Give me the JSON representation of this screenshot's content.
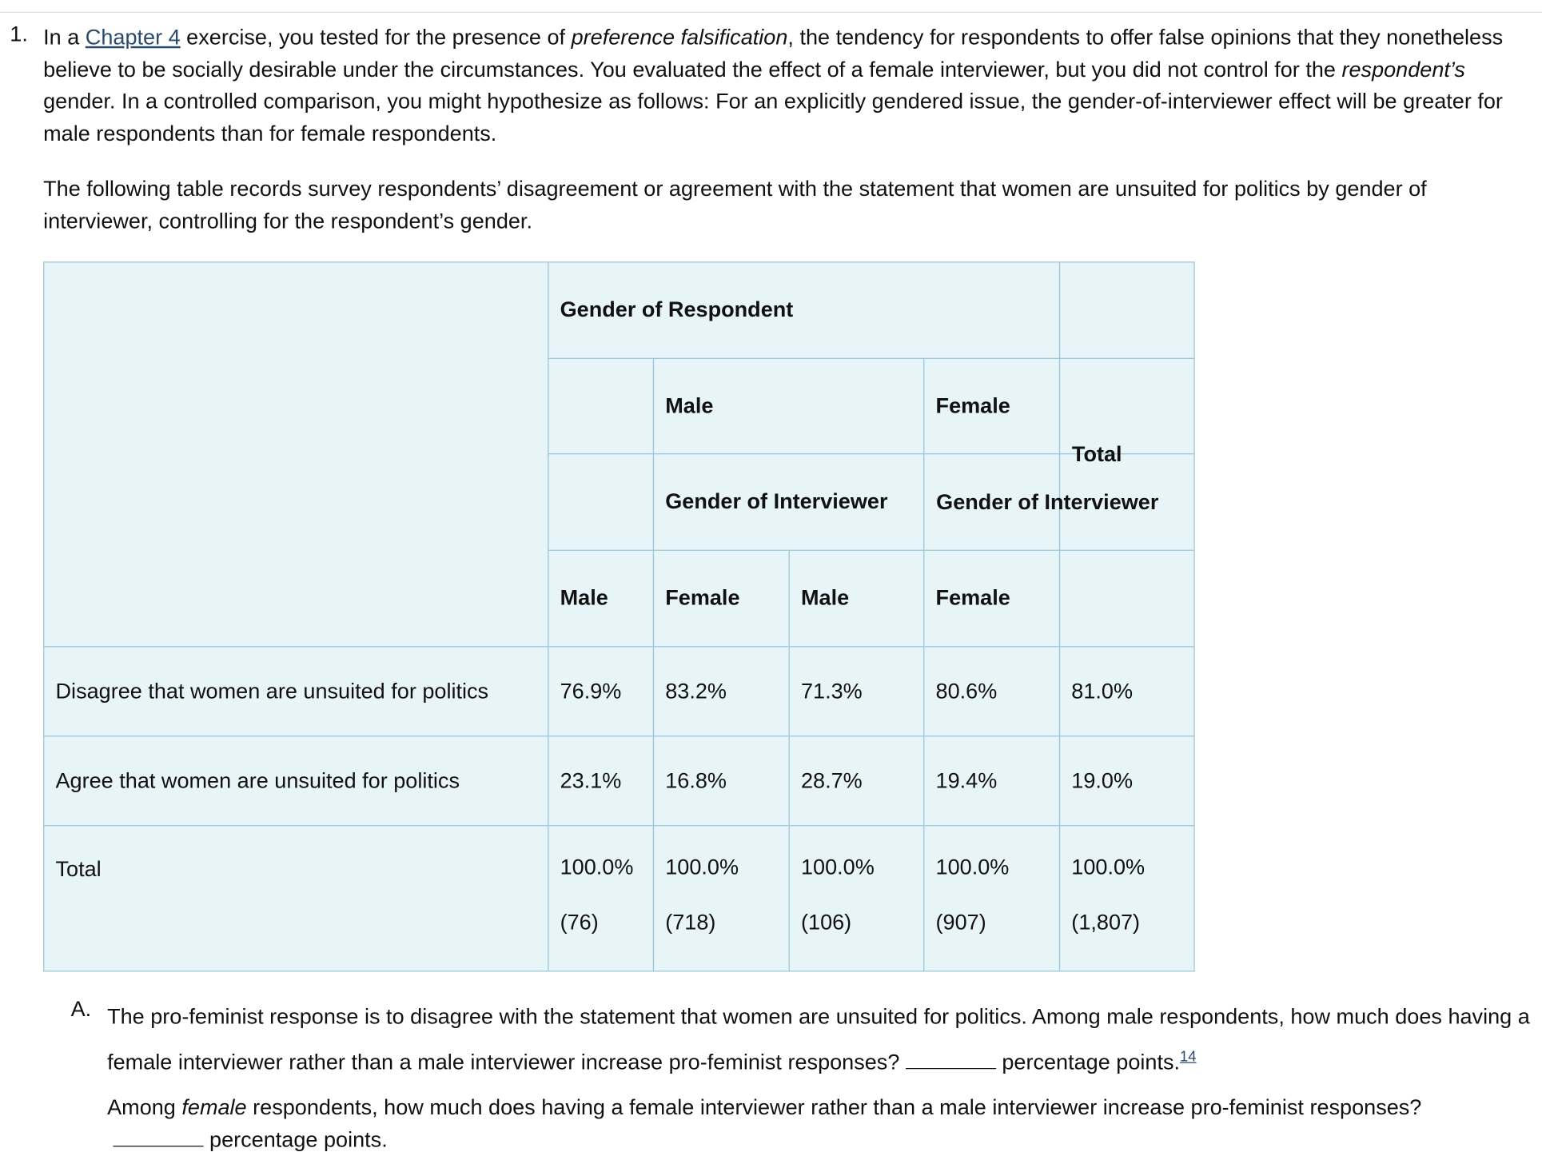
{
  "question": {
    "number": "1.",
    "paragraph1": [
      "In a ",
      "Chapter 4",
      " exercise, you tested for the presence of ",
      "preference falsification",
      ", the tendency for respondents to offer false opinions that they nonetheless believe to be socially desirable under the circumstances. You evaluated the effect of a female interviewer, but you did not control for the ",
      "respondent’s",
      " gender. In a controlled comparison, you might hypothesize as follows: For an explicitly gendered issue, the gender-of-interviewer effect will be greater for male respondents than for female respondents."
    ],
    "paragraph2": "The following table records survey respondents’ disagreement or agreement with the statement that women are unsuited for politics by gender of interviewer, controlling for the respondent’s gender."
  },
  "table": {
    "header": {
      "respondent": "Gender of Respondent",
      "male": "Male",
      "female": "Female",
      "total": "Total",
      "interviewer_male": "Gender of Interviewer",
      "interviewer_female": "Gender of Interviewer",
      "columns": [
        "Male",
        "Female",
        "Male",
        "Female"
      ]
    },
    "rows": [
      {
        "label": "Disagree that women are unsuited for politics",
        "values": [
          "76.9%",
          "83.2%",
          "71.3%",
          "80.6%",
          "81.0%"
        ]
      },
      {
        "label": "Agree that women are unsuited for politics",
        "values": [
          "23.1%",
          "16.8%",
          "28.7%",
          "19.4%",
          "19.0%"
        ]
      }
    ],
    "total": {
      "label": "Total",
      "values": [
        "100.0%",
        "100.0%",
        "100.0%",
        "100.0%",
        "100.0%"
      ],
      "counts": [
        "(76)",
        "(718)",
        "(106)",
        "(907)",
        "(1,807)"
      ]
    }
  },
  "part_a": {
    "letter": "A.",
    "text1": "The pro-feminist response is to disagree with the statement that women are unsuited for politics. Among male respondents, how much does having a female interviewer rather than a male interviewer increase pro-feminist responses?",
    "text1_end": "percentage points.",
    "footnote": "14",
    "text2": [
      "Among ",
      "female",
      " respondents, how much does having a female interviewer rather than a male interviewer increase pro-feminist responses?",
      "percentage points."
    ]
  }
}
